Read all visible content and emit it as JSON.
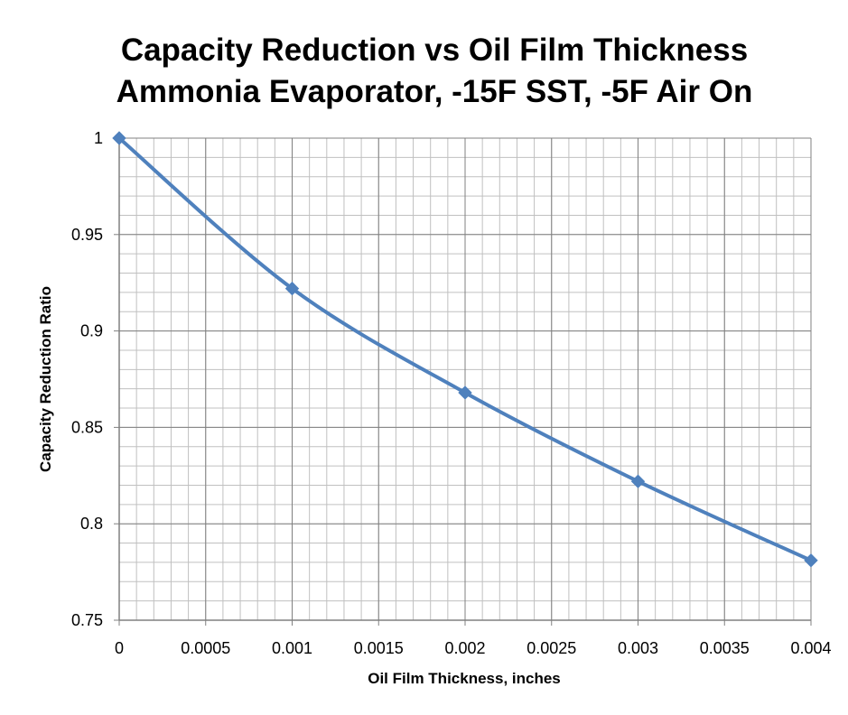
{
  "chart_data": {
    "type": "line",
    "title": "Capacity Reduction vs Oil Film Thickness",
    "subtitle": "Ammonia Evaporator, -15F SST, -5F Air On",
    "xlabel": "Oil Film Thickness, inches",
    "ylabel": "Capacity Reduction Ratio",
    "xlim": [
      0,
      0.004
    ],
    "ylim": [
      0.75,
      1
    ],
    "x_ticks": [
      "0",
      "0.0005",
      "0.001",
      "0.0015",
      "0.002",
      "0.0025",
      "0.003",
      "0.0035",
      "0.004"
    ],
    "y_ticks": [
      "0.75",
      "0.8",
      "0.85",
      "0.9",
      "0.95",
      "1"
    ],
    "x_tick_values": [
      0,
      0.0005,
      0.001,
      0.0015,
      0.002,
      0.0025,
      0.003,
      0.0035,
      0.004
    ],
    "y_tick_values": [
      0.75,
      0.8,
      0.85,
      0.9,
      0.95,
      1
    ],
    "grid": true,
    "legend": "none",
    "marker": "diamond",
    "series": [
      {
        "color": "#4F81BD",
        "x": [
          0,
          0.001,
          0.002,
          0.003,
          0.004
        ],
        "y": [
          1.0,
          0.922,
          0.868,
          0.822,
          0.781
        ]
      }
    ],
    "colors": {
      "line": "#4F81BD",
      "marker": "#4F81BD",
      "grid_major": "#808080",
      "grid_minor": "#c0c0c0",
      "axis": "#808080"
    }
  }
}
